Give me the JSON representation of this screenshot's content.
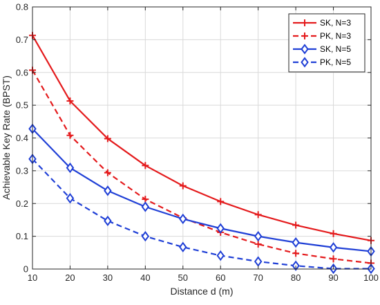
{
  "chart_data": {
    "type": "line",
    "title": "",
    "xlabel": "Distance d (m)",
    "ylabel": "Achievable Key Rate (BPST)",
    "xlim": [
      10,
      100
    ],
    "ylim": [
      0,
      0.8
    ],
    "xticks": [
      10,
      20,
      30,
      40,
      50,
      60,
      70,
      80,
      90,
      100
    ],
    "yticks": [
      0,
      0.1,
      0.2,
      0.3,
      0.4,
      0.5,
      0.6,
      0.7,
      0.8
    ],
    "x": [
      10,
      20,
      30,
      40,
      50,
      60,
      70,
      80,
      90,
      100
    ],
    "grid": true,
    "legend_position": "top-right",
    "series": [
      {
        "name": "SK, N=3",
        "color": "#e41a1c",
        "line": "solid",
        "marker": "plus",
        "values": [
          0.713,
          0.513,
          0.398,
          0.316,
          0.254,
          0.206,
          0.166,
          0.134,
          0.108,
          0.087
        ]
      },
      {
        "name": "PK, N=3",
        "color": "#e41a1c",
        "line": "dashed",
        "marker": "plus",
        "values": [
          0.607,
          0.408,
          0.294,
          0.213,
          0.156,
          0.112,
          0.076,
          0.048,
          0.031,
          0.018
        ]
      },
      {
        "name": "SK, N=5",
        "color": "#1f3fd6",
        "line": "solid",
        "marker": "diamond",
        "values": [
          0.428,
          0.309,
          0.239,
          0.19,
          0.153,
          0.124,
          0.1,
          0.081,
          0.066,
          0.054
        ]
      },
      {
        "name": "PK, N=5",
        "color": "#1f3fd6",
        "line": "dashed",
        "marker": "diamond",
        "values": [
          0.336,
          0.216,
          0.147,
          0.1,
          0.067,
          0.041,
          0.023,
          0.01,
          0.001,
          0.001
        ]
      }
    ]
  }
}
